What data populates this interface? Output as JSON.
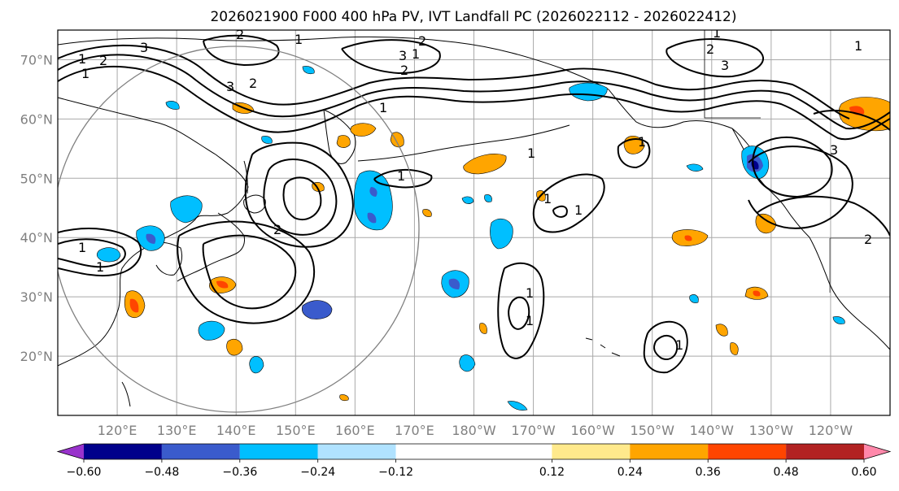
{
  "figure": {
    "title": "2026021900 F000 400 hPa PV, IVT Landfall PC (2026022112 - 2026022412)"
  },
  "axes": {
    "lat_labels": [
      "70°N",
      "60°N",
      "50°N",
      "40°N",
      "30°N",
      "20°N"
    ],
    "lon_labels": [
      "120°E",
      "130°E",
      "140°E",
      "150°E",
      "160°E",
      "170°E",
      "180°W",
      "170°W",
      "160°W",
      "150°W",
      "140°W",
      "130°W",
      "120°W"
    ],
    "lat_values": [
      70,
      60,
      50,
      40,
      30,
      20
    ],
    "lon_values": [
      120,
      130,
      140,
      150,
      160,
      170,
      180,
      190,
      200,
      210,
      220,
      230,
      240
    ],
    "lat_range": [
      10,
      75
    ],
    "lon_range": [
      110,
      250
    ]
  },
  "colorbar": {
    "colors": [
      "#9933cc",
      "#00008b",
      "#3a5bcc",
      "#00bfff",
      "#b0e2ff",
      "#ffffff",
      "#ffe98c",
      "#ffa500",
      "#ff4500",
      "#b22222",
      "#ff88aa"
    ],
    "boundaries": [
      -0.72,
      -0.6,
      -0.48,
      -0.36,
      -0.24,
      -0.12,
      0.12,
      0.24,
      0.36,
      0.48,
      0.6,
      0.72
    ],
    "tick_labels": [
      "−0.60",
      "−0.48",
      "−0.36",
      "−0.24",
      "−0.12",
      "0.12",
      "0.24",
      "0.36",
      "0.48",
      "0.60"
    ]
  },
  "contour_labels": [
    "3",
    "2",
    "1",
    "1",
    "3",
    "2",
    "1",
    "2",
    "2",
    "1",
    "3",
    "2",
    "1",
    "1",
    "2",
    "3",
    "1",
    "1",
    "1",
    "2",
    "1",
    "1",
    "1",
    "1",
    "1",
    "1",
    "1",
    "1",
    "3",
    "2"
  ]
}
